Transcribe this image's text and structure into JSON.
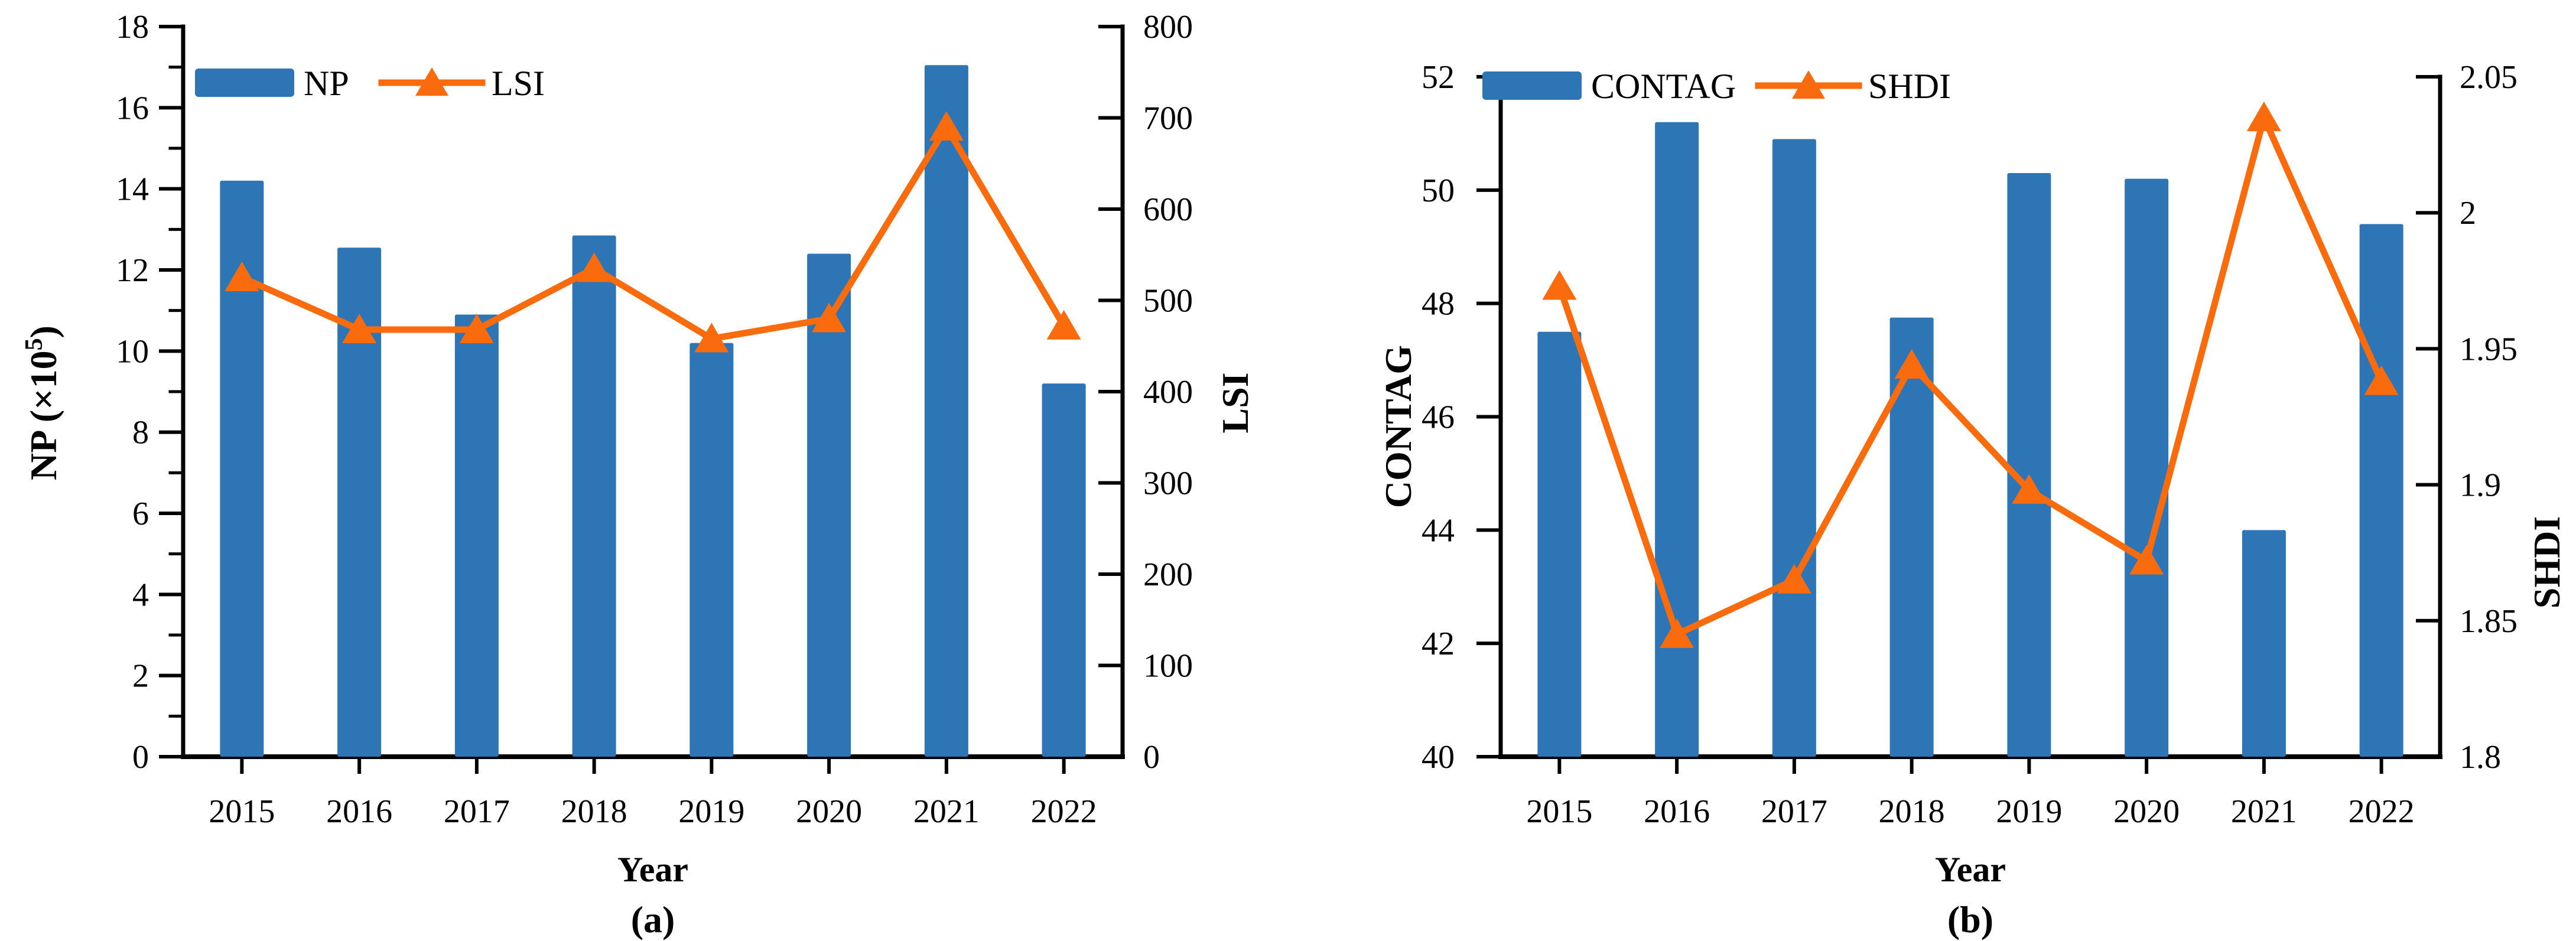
{
  "figure": {
    "background": "#ffffff",
    "captions": {
      "a": "(a)",
      "b": "(b)"
    }
  },
  "colors": {
    "bar": "#2E75B6",
    "line": "#FA6B0D",
    "axis": "#000000",
    "text": "#000000"
  },
  "chart_data": [
    {
      "id": "a",
      "type": "bar+line dual-axis",
      "caption": "(a)",
      "categories": [
        "2015",
        "2016",
        "2017",
        "2018",
        "2019",
        "2020",
        "2021",
        "2022"
      ],
      "xlabel": "Year",
      "legend": [
        "NP",
        "LSI"
      ],
      "series": [
        {
          "name": "NP",
          "type": "bar",
          "axis": "left",
          "values": [
            14.2,
            12.55,
            10.9,
            12.85,
            10.2,
            12.4,
            17.05,
            9.2
          ]
        },
        {
          "name": "LSI",
          "type": "line",
          "axis": "right",
          "marker": "triangle-up",
          "values": [
            525,
            468,
            468,
            535,
            458,
            480,
            690,
            472
          ]
        }
      ],
      "left_axis": {
        "label": "NP (×10⁵)",
        "label_parts": {
          "pre": "NP (×10",
          "sup": "5",
          "post": ")"
        },
        "min": 0,
        "max": 18,
        "major_step": 2,
        "minor_step": 1,
        "tick_labels": [
          "0",
          "2",
          "4",
          "6",
          "8",
          "10",
          "12",
          "14",
          "16",
          "18"
        ]
      },
      "right_axis": {
        "label": "LSI",
        "min": 0,
        "max": 800,
        "major_step": 100,
        "tick_labels": [
          "0",
          "100",
          "200",
          "300",
          "400",
          "500",
          "600",
          "700",
          "800"
        ]
      }
    },
    {
      "id": "b",
      "type": "bar+line dual-axis",
      "caption": "(b)",
      "categories": [
        "2015",
        "2016",
        "2017",
        "2018",
        "2019",
        "2020",
        "2021",
        "2022"
      ],
      "xlabel": "Year",
      "legend": [
        "CONTAG",
        "SHDI"
      ],
      "series": [
        {
          "name": "CONTAG",
          "type": "bar",
          "axis": "left",
          "values": [
            47.5,
            51.2,
            50.9,
            47.75,
            50.3,
            50.2,
            44.0,
            49.4
          ]
        },
        {
          "name": "SHDI",
          "type": "line",
          "axis": "right",
          "marker": "triangle-up",
          "values": [
            1.973,
            1.845,
            1.865,
            1.944,
            1.898,
            1.872,
            2.035,
            1.938
          ]
        }
      ],
      "left_axis": {
        "label": "CONTAG",
        "min": 40,
        "max": 52,
        "major_step": 2,
        "tick_labels": [
          "40",
          "42",
          "44",
          "46",
          "48",
          "50",
          "52"
        ]
      },
      "right_axis": {
        "label": "SHDI",
        "min": 1.8,
        "max": 2.05,
        "major_step": 0.05,
        "tick_labels": [
          "1.8",
          "1.85",
          "1.9",
          "1.95",
          "2",
          "2.05"
        ]
      }
    }
  ]
}
